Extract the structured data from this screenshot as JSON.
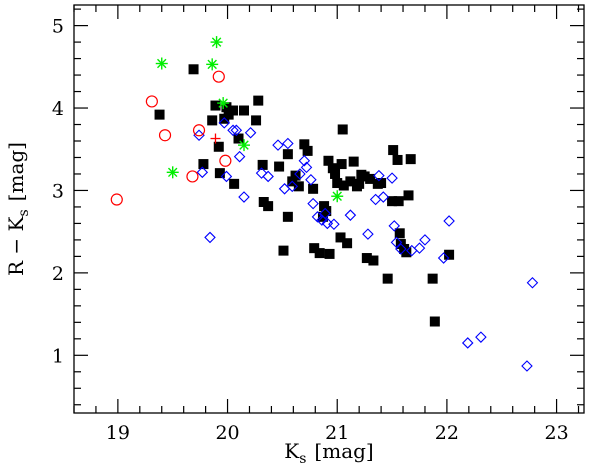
{
  "chart_data": {
    "type": "scatter",
    "title": "",
    "xlabel": "K",
    "xlabel_sub": "s",
    "xlabel_unit": "[mag]",
    "ylabel": "R − K",
    "ylabel_sub": "s",
    "ylabel_unit": "[mag]",
    "xlim": [
      18.6,
      23.25
    ],
    "ylim": [
      0.3,
      5.25
    ],
    "xticks_major": [
      19,
      20,
      21,
      22,
      23
    ],
    "xtick_labels": [
      "19",
      "20",
      "21",
      "22",
      "23"
    ],
    "yticks_major": [
      1,
      2,
      3,
      4,
      5
    ],
    "ytick_labels": [
      "1",
      "2",
      "3",
      "4",
      "5"
    ],
    "grid": false,
    "legend": "none",
    "series": [
      {
        "marker": "filled-square",
        "color": "#000000",
        "points": [
          [
            19.38,
            3.92
          ],
          [
            19.69,
            4.47
          ],
          [
            19.78,
            3.32
          ],
          [
            19.86,
            3.85
          ],
          [
            19.89,
            4.03
          ],
          [
            19.92,
            3.53
          ],
          [
            19.93,
            3.21
          ],
          [
            19.97,
            3.87
          ],
          [
            19.99,
            4.01
          ],
          [
            20.01,
            3.92
          ],
          [
            20.05,
            3.97
          ],
          [
            20.06,
            3.08
          ],
          [
            20.1,
            3.63
          ],
          [
            20.15,
            3.97
          ],
          [
            20.26,
            3.85
          ],
          [
            20.28,
            4.09
          ],
          [
            20.32,
            3.31
          ],
          [
            20.33,
            2.86
          ],
          [
            20.37,
            2.81
          ],
          [
            20.47,
            3.29
          ],
          [
            20.51,
            2.27
          ],
          [
            20.55,
            3.44
          ],
          [
            20.55,
            2.68
          ],
          [
            20.59,
            3.11
          ],
          [
            20.62,
            3.18
          ],
          [
            20.65,
            3.05
          ],
          [
            20.7,
            3.56
          ],
          [
            20.73,
            3.48
          ],
          [
            20.78,
            3.02
          ],
          [
            20.79,
            2.3
          ],
          [
            20.84,
            2.24
          ],
          [
            20.87,
            2.68
          ],
          [
            20.88,
            2.81
          ],
          [
            20.9,
            2.75
          ],
          [
            20.92,
            3.36
          ],
          [
            20.93,
            2.23
          ],
          [
            20.96,
            3.27
          ],
          [
            20.98,
            3.2
          ],
          [
            21.0,
            3.09
          ],
          [
            21.03,
            2.43
          ],
          [
            21.04,
            3.32
          ],
          [
            21.05,
            3.74
          ],
          [
            21.06,
            3.06
          ],
          [
            21.09,
            2.36
          ],
          [
            21.12,
            3.11
          ],
          [
            21.15,
            3.35
          ],
          [
            21.18,
            3.05
          ],
          [
            21.2,
            3.08
          ],
          [
            21.22,
            3.19
          ],
          [
            21.25,
            3.17
          ],
          [
            21.27,
            2.18
          ],
          [
            21.3,
            3.14
          ],
          [
            21.33,
            2.15
          ],
          [
            21.37,
            3.08
          ],
          [
            21.4,
            3.09
          ],
          [
            21.46,
            1.93
          ],
          [
            21.5,
            2.87
          ],
          [
            21.51,
            3.49
          ],
          [
            21.55,
            3.37
          ],
          [
            21.57,
            2.48
          ],
          [
            21.58,
            2.35
          ],
          [
            21.61,
            2.29
          ],
          [
            21.63,
            2.25
          ],
          [
            21.65,
            2.94
          ],
          [
            21.67,
            3.38
          ],
          [
            21.87,
            1.93
          ],
          [
            21.89,
            1.41
          ],
          [
            22.02,
            2.22
          ],
          [
            21.56,
            2.87
          ]
        ]
      },
      {
        "marker": "open-diamond",
        "color": "#0000ff",
        "points": [
          [
            19.74,
            3.67
          ],
          [
            19.77,
            3.22
          ],
          [
            19.84,
            2.43
          ],
          [
            19.97,
            3.82
          ],
          [
            19.99,
            3.17
          ],
          [
            20.05,
            3.73
          ],
          [
            20.08,
            3.73
          ],
          [
            20.11,
            3.41
          ],
          [
            20.15,
            2.92
          ],
          [
            20.21,
            3.7
          ],
          [
            20.31,
            3.21
          ],
          [
            20.37,
            3.17
          ],
          [
            20.46,
            3.55
          ],
          [
            20.52,
            3.02
          ],
          [
            20.55,
            3.57
          ],
          [
            20.59,
            3.05
          ],
          [
            20.66,
            3.2
          ],
          [
            20.7,
            3.36
          ],
          [
            20.72,
            3.28
          ],
          [
            20.76,
            3.13
          ],
          [
            20.78,
            2.84
          ],
          [
            20.82,
            2.68
          ],
          [
            20.86,
            2.64
          ],
          [
            20.89,
            2.72
          ],
          [
            20.91,
            2.6
          ],
          [
            20.97,
            2.59
          ],
          [
            21.12,
            2.7
          ],
          [
            21.28,
            2.47
          ],
          [
            21.35,
            2.89
          ],
          [
            21.38,
            3.18
          ],
          [
            21.42,
            2.92
          ],
          [
            21.5,
            3.15
          ],
          [
            21.52,
            2.57
          ],
          [
            21.54,
            2.37
          ],
          [
            21.58,
            2.29
          ],
          [
            21.68,
            2.27
          ],
          [
            21.75,
            2.3
          ],
          [
            21.8,
            2.4
          ],
          [
            22.02,
            2.63
          ],
          [
            21.97,
            2.18
          ],
          [
            22.19,
            1.15
          ],
          [
            22.31,
            1.22
          ],
          [
            22.73,
            0.87
          ],
          [
            22.78,
            1.88
          ]
        ]
      },
      {
        "marker": "open-circle",
        "color": "#ff0000",
        "points": [
          [
            18.99,
            2.89
          ],
          [
            19.31,
            4.08
          ],
          [
            19.43,
            3.67
          ],
          [
            19.68,
            3.17
          ],
          [
            19.74,
            3.73
          ],
          [
            19.92,
            4.38
          ],
          [
            19.98,
            3.36
          ]
        ]
      },
      {
        "marker": "asterisk",
        "color": "#00ee00",
        "points": [
          [
            19.4,
            4.54
          ],
          [
            19.5,
            3.22
          ],
          [
            19.86,
            4.53
          ],
          [
            19.9,
            4.8
          ],
          [
            19.96,
            4.06
          ],
          [
            20.15,
            3.55
          ],
          [
            21.0,
            2.93
          ]
        ]
      },
      {
        "marker": "plus",
        "color": "#ff0000",
        "points": [
          [
            19.89,
            3.63
          ]
        ]
      }
    ]
  }
}
